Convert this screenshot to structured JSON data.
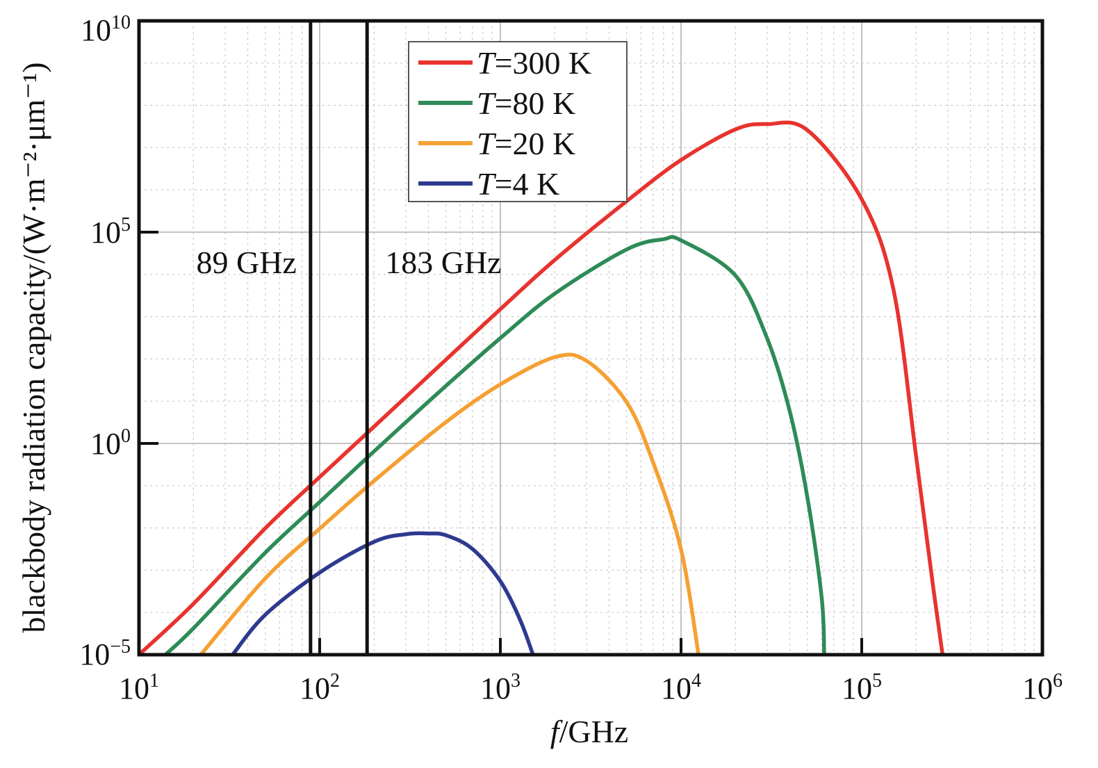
{
  "chart_data": {
    "type": "line",
    "xlabel": {
      "italic": "f",
      "rest": "/GHz"
    },
    "ylabel": "blackbody radiation capacity/(W·m⁻²·μm⁻¹)",
    "x_scale": "log",
    "y_scale": "log",
    "xlim": [
      10,
      1000000
    ],
    "ylim": [
      1e-05,
      10000000000
    ],
    "x_ticks": [
      {
        "value": 10,
        "base": "10",
        "exp": "1"
      },
      {
        "value": 100,
        "base": "10",
        "exp": "2"
      },
      {
        "value": 1000,
        "base": "10",
        "exp": "3"
      },
      {
        "value": 10000,
        "base": "10",
        "exp": "4"
      },
      {
        "value": 100000,
        "base": "10",
        "exp": "5"
      },
      {
        "value": 1000000,
        "base": "10",
        "exp": "6"
      }
    ],
    "y_ticks": [
      {
        "value": 1e-05,
        "base": "10",
        "exp": "−5"
      },
      {
        "value": 1,
        "base": "10",
        "exp": "0"
      },
      {
        "value": 100000,
        "base": "10",
        "exp": "5"
      },
      {
        "value": 10000000000,
        "base": "10",
        "exp": "10"
      }
    ],
    "grid": true,
    "legend_position": "top-center",
    "series": [
      {
        "name": "300 K",
        "name_prefix": "T",
        "temperature_K": 300,
        "color": "#e8332e",
        "x": [
          10,
          20,
          50,
          100,
          200,
          500,
          1000,
          2000,
          5000,
          10000,
          20000,
          30000,
          50000,
          100000,
          150000,
          200000,
          250000,
          280000
        ],
        "y": [
          1e-05,
          0.00016,
          0.0098,
          0.16,
          2.5,
          96,
          1500,
          22000,
          540000,
          5100000,
          27000000,
          36000000,
          26000000,
          600000,
          4300,
          0.49,
          0.00033,
          1e-05
        ]
      },
      {
        "name": "80 K",
        "name_prefix": "T",
        "temperature_K": 80,
        "color": "#2e8b57",
        "x": [
          14,
          20,
          50,
          100,
          200,
          500,
          1000,
          2000,
          5000,
          8000,
          10000,
          20000,
          30000,
          40000,
          50000,
          60000,
          62000
        ],
        "y": [
          1e-05,
          4.2e-05,
          0.0026,
          0.041,
          0.65,
          23,
          310,
          3500,
          39000,
          68000,
          64000,
          9400,
          300,
          5.7,
          0.054,
          0.00023,
          1e-05
        ]
      },
      {
        "name": "20 K",
        "name_prefix": "T",
        "temperature_K": 20,
        "color": "#f5a033",
        "x": [
          22,
          50,
          100,
          200,
          500,
          1000,
          2000,
          3000,
          5000,
          7000,
          10000,
          12500
        ],
        "y": [
          1e-05,
          0.00064,
          0.0096,
          0.13,
          3.2,
          25,
          110,
          90,
          9.5,
          0.36,
          0.0031,
          1e-05
        ]
      },
      {
        "name": "4 K",
        "name_prefix": "T",
        "temperature_K": 4,
        "color": "#2e3a8f",
        "x": [
          33,
          50,
          100,
          200,
          300,
          400,
          500,
          700,
          1000,
          1300,
          1600
        ],
        "y": [
          1e-05,
          8.8e-05,
          0.00088,
          0.0047,
          0.0071,
          0.0074,
          0.0067,
          0.0032,
          0.00055,
          6e-05,
          5e-06
        ]
      }
    ],
    "markers": [
      {
        "x": 89,
        "label": "89 GHz"
      },
      {
        "x": 183,
        "label": "183 GHz"
      }
    ]
  }
}
